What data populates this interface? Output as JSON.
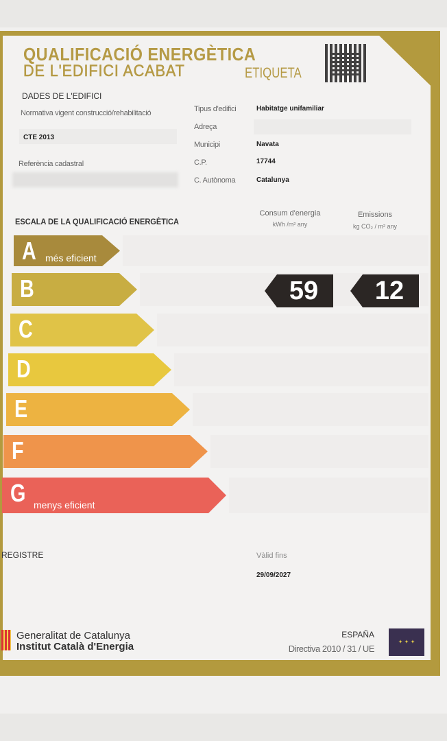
{
  "header": {
    "title_line1": "QUALIFICACIÓ ENERGÈTICA",
    "title_line2": "DE L'EDIFICI ACABAT",
    "label": "ETIQUETA",
    "qr_icon": "qr-code-icon"
  },
  "building": {
    "section_title": "DADES DE L'EDIFICI",
    "normativa_label": "Normativa vigent construcció/rehabilitació",
    "normativa_value": "CTE 2013",
    "referencia_label": "Referència cadastral",
    "fields": [
      {
        "label": "Tipus d'edifici",
        "value": "Habitatge unifamiliar"
      },
      {
        "label": "Adreça",
        "value": ""
      },
      {
        "label": "Municipi",
        "value": "Navata"
      },
      {
        "label": "C.P.",
        "value": "17744"
      },
      {
        "label": "C. Autònoma",
        "value": "Catalunya"
      }
    ]
  },
  "scale": {
    "title": "ESCALA DE LA QUALIFICACIÓ ENERGÈTICA",
    "consum_label": "Consum d'energia",
    "consum_unit": "kWh /m² any",
    "emissions_label": "Emissions",
    "emissions_unit": "kg CO₂ / m² any",
    "classes": [
      {
        "letter": "A",
        "sub": "més eficient",
        "color": "#a88a3c"
      },
      {
        "letter": "B",
        "sub": "",
        "color": "#c8ad42"
      },
      {
        "letter": "C",
        "sub": "",
        "color": "#e0c347"
      },
      {
        "letter": "D",
        "sub": "",
        "color": "#e8c83e"
      },
      {
        "letter": "E",
        "sub": "",
        "color": "#edb341"
      },
      {
        "letter": "F",
        "sub": "",
        "color": "#ef944b"
      },
      {
        "letter": "G",
        "sub": "menys eficient",
        "color": "#ea6258"
      }
    ],
    "rating_class": "B",
    "consum_value": "59",
    "emissions_value": "12"
  },
  "footer": {
    "registre_label": "REGISTRE",
    "valid_label": "Vàlid fins",
    "valid_value": "29/09/2027",
    "org1": "Generalitat de Catalunya",
    "org2": "Institut Català d'Energia",
    "country": "ESPAÑA",
    "directive": "Directiva 2010 / 31 / UE",
    "eu_flag_icon": "eu-flag-icon"
  }
}
